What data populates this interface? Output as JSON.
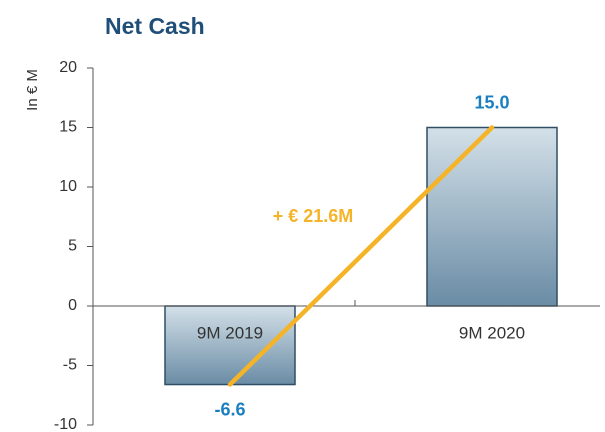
{
  "chart_data": {
    "type": "bar",
    "title": "Net Cash",
    "ylabel": "In € M",
    "categories": [
      "9M 2019",
      "9M 2020"
    ],
    "values": [
      -6.6,
      15
    ],
    "value_labels": [
      "-6.6",
      "15.0"
    ],
    "color": "#2f4f65",
    "ylim": [
      -10,
      20
    ],
    "yticks": [
      -10,
      -5,
      0,
      5,
      10,
      15,
      20
    ],
    "annotation": "+ € 21.6M",
    "annotation_color": "#f5b428",
    "label_color": "#1a7fc1"
  }
}
